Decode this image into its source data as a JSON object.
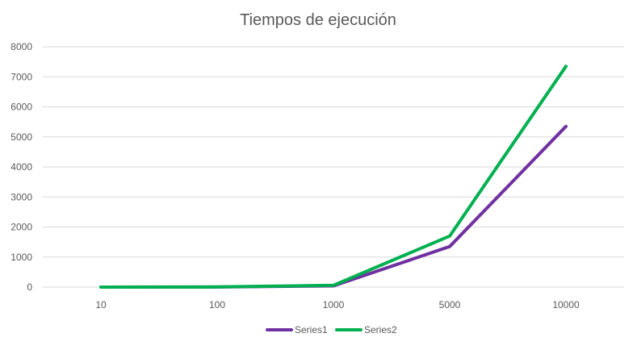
{
  "chart_data": {
    "type": "line",
    "title": "Tiempos de ejecución",
    "xlabel": "",
    "ylabel": "",
    "categories": [
      "10",
      "100",
      "1000",
      "5000",
      "10000"
    ],
    "ylim": [
      0,
      8000
    ],
    "yticks": [
      0,
      1000,
      2000,
      3000,
      4000,
      5000,
      6000,
      7000,
      8000
    ],
    "grid": true,
    "legend_position": "bottom",
    "series": [
      {
        "name": "Series1",
        "color": "#7030a0",
        "values": [
          0,
          2,
          40,
          1350,
          5350
        ]
      },
      {
        "name": "Series2",
        "color": "#00b050",
        "values": [
          0,
          5,
          60,
          1700,
          7350
        ]
      }
    ]
  }
}
